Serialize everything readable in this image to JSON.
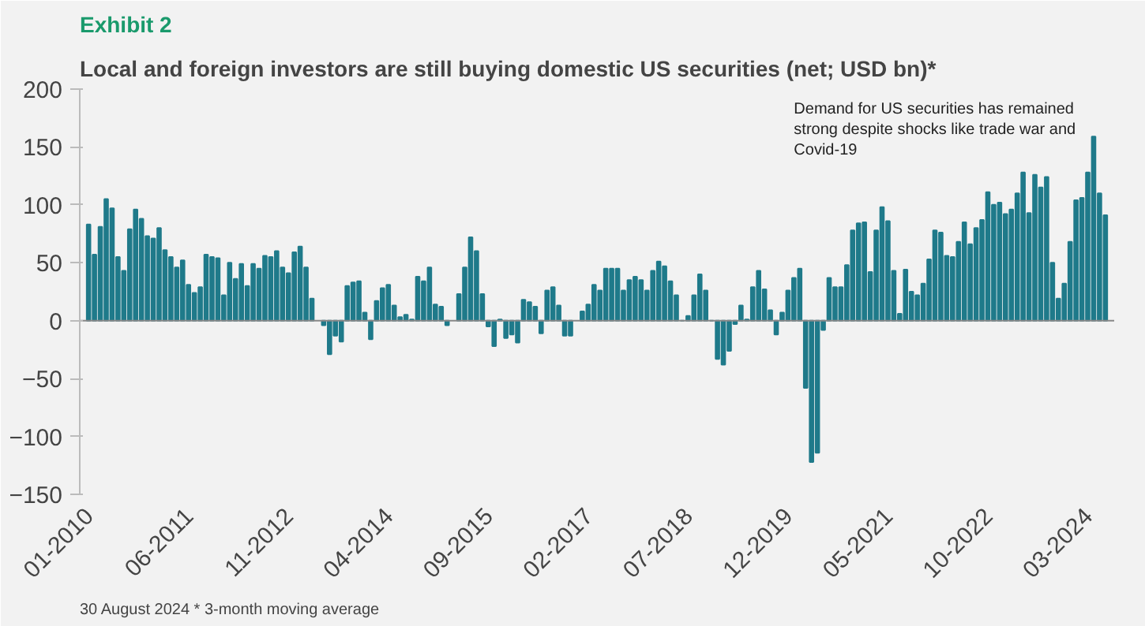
{
  "chart_data": {
    "type": "bar",
    "title": "Exhibit 2",
    "subtitle": "Local and foreign investors are still buying domestic US securities (net; USD bn)*",
    "categories": [
      "01-2010",
      null,
      null,
      null,
      null,
      null,
      null,
      null,
      null,
      null,
      null,
      null,
      null,
      null,
      null,
      null,
      null,
      "06-2011",
      null,
      null,
      null,
      null,
      null,
      null,
      null,
      null,
      null,
      null,
      null,
      null,
      null,
      null,
      null,
      null,
      "11-2012",
      null,
      null,
      null,
      null,
      null,
      null,
      null,
      null,
      null,
      null,
      null,
      null,
      null,
      null,
      null,
      null,
      "04-2014",
      null,
      null,
      null,
      null,
      null,
      null,
      null,
      null,
      null,
      null,
      null,
      null,
      null,
      null,
      null,
      null,
      "09-2015",
      null,
      null,
      null,
      null,
      null,
      null,
      null,
      null,
      null,
      null,
      null,
      null,
      null,
      null,
      null,
      null,
      "02-2017",
      null,
      null,
      null,
      null,
      null,
      null,
      null,
      null,
      null,
      null,
      null,
      null,
      null,
      null,
      null,
      null,
      "07-2018",
      null,
      null,
      null,
      null,
      null,
      null,
      null,
      null,
      null,
      null,
      null,
      null,
      null,
      null,
      null,
      null,
      "12-2019",
      null,
      null,
      null,
      null,
      null,
      null,
      null,
      null,
      null,
      null,
      null,
      null,
      null,
      null,
      null,
      null,
      "05-2021",
      null,
      null,
      null,
      null,
      null,
      null,
      null,
      null,
      null,
      null,
      null,
      null,
      null,
      null,
      null,
      null,
      "10-2022",
      null,
      null,
      null,
      null,
      null,
      null,
      null,
      null,
      null,
      null,
      null,
      null,
      null,
      null,
      null,
      null,
      "03-2024",
      null,
      null,
      null
    ],
    "values": [
      83,
      57,
      81,
      105,
      97,
      55,
      43,
      79,
      96,
      88,
      73,
      71,
      80,
      61,
      55,
      46,
      52,
      31,
      24,
      29,
      57,
      55,
      54,
      22,
      50,
      36,
      49,
      30,
      49,
      45,
      56,
      55,
      60,
      46,
      41,
      59,
      64,
      46,
      19,
      null,
      -4,
      -29,
      -13,
      -18,
      30,
      33,
      34,
      7,
      -16,
      17,
      28,
      31,
      13,
      3,
      5,
      1,
      38,
      34,
      46,
      14,
      12,
      -4,
      null,
      23,
      46,
      72,
      60,
      23,
      -5,
      -22,
      1,
      -15,
      -12,
      -19,
      18,
      16,
      12,
      -11,
      26,
      29,
      13,
      -13,
      -13,
      null,
      8,
      14,
      31,
      26,
      45,
      45,
      45,
      26,
      35,
      38,
      35,
      26,
      43,
      51,
      47,
      34,
      22,
      0,
      4,
      22,
      40,
      26,
      0,
      -33,
      -38,
      -26,
      -3,
      13,
      1,
      29,
      43,
      27,
      9,
      -12,
      7,
      26,
      37,
      45,
      -58,
      -122,
      -114,
      -8,
      37,
      29,
      29,
      48,
      78,
      84,
      85,
      42,
      78,
      98,
      86,
      43,
      6,
      44,
      25,
      22,
      32,
      53,
      78,
      76,
      56,
      55,
      68,
      85,
      66,
      80,
      87,
      111,
      100,
      102,
      92,
      96,
      110,
      128,
      93,
      126,
      115,
      124,
      50,
      19,
      32,
      68,
      104,
      106,
      128,
      159,
      110,
      91
    ],
    "color": "#1f7a8a",
    "ylim": [
      -150,
      200
    ],
    "yticks": [
      -150,
      -100,
      -50,
      0,
      50,
      100,
      150,
      200
    ],
    "grid": false,
    "ref_lines": [
      {
        "axis": "y",
        "value": 0
      }
    ],
    "annotations": [
      "Demand for US securities has remained\nstrong despite shocks like trade war and\nCovid-19",
      "30 August 2024 * 3-month moving average"
    ]
  }
}
